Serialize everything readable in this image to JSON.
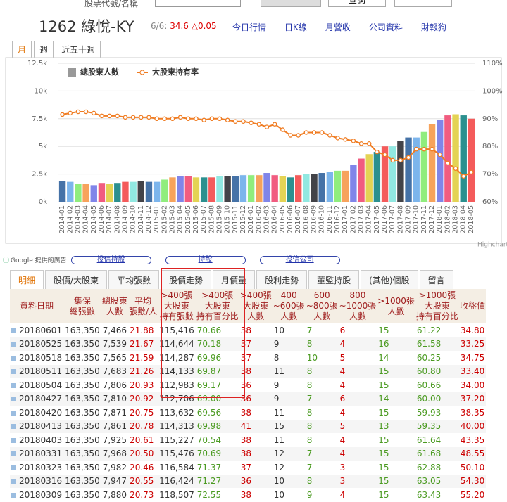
{
  "search": {
    "label": "股票代號/名稱",
    "button": "查詢"
  },
  "header": {
    "title": "1262 綠悅-KY",
    "date": "6/6:",
    "price": "34.6",
    "change": "△0.05",
    "links": [
      "今日行情",
      "日K線",
      "月營收",
      "公司資料",
      "財報狗"
    ]
  },
  "period_tabs": [
    "月",
    "週",
    "近五十週"
  ],
  "chart_data": {
    "type": "bar_line",
    "categories": [
      "2014-01",
      "2014-02",
      "2014-03",
      "2014-04",
      "2014-05",
      "2014-06",
      "2014-07",
      "2014-08",
      "2014-09",
      "2014-10",
      "2014-11",
      "2014-12",
      "2015-01",
      "2015-02",
      "2015-03",
      "2015-04",
      "2015-05",
      "2015-06",
      "2015-07",
      "2015-08",
      "2015-09",
      "2015-10",
      "2015-11",
      "2015-12",
      "2016-01",
      "2016-02",
      "2016-03",
      "2016-04",
      "2016-05",
      "2016-06",
      "2016-07",
      "2016-08",
      "2016-09",
      "2016-10",
      "2016-11",
      "2016-12",
      "2017-01",
      "2017-02",
      "2017-03",
      "2017-04",
      "2017-05",
      "2017-06",
      "2017-07",
      "2017-08",
      "2017-09",
      "2017-10",
      "2017-11",
      "2017-12",
      "2018-01",
      "2018-02",
      "2018-03",
      "2018-04",
      "2018-05"
    ],
    "series": [
      {
        "name": "總股東人數",
        "color": "#999999",
        "colors": [
          "#4572a7",
          "#7cb5ec",
          "#90ed7d",
          "#f7a35c",
          "#8085e9",
          "#f15c80",
          "#e4d354",
          "#2b908f",
          "#f45b5b",
          "#91e8e1",
          "#434348"
        ],
        "values": [
          1900,
          1800,
          1600,
          1600,
          1500,
          1700,
          1600,
          1700,
          1800,
          1800,
          1900,
          1800,
          1800,
          2000,
          2200,
          2300,
          2300,
          2200,
          2200,
          2200,
          2300,
          2300,
          2300,
          2400,
          2400,
          2400,
          2600,
          2400,
          2300,
          2200,
          2400,
          2500,
          2500,
          2600,
          2700,
          2800,
          2800,
          3300,
          3900,
          4300,
          4500,
          5000,
          5000,
          5500,
          5800,
          5800,
          6300,
          7000,
          7400,
          7800,
          7900,
          7800,
          7500
        ]
      },
      {
        "name": "大股東持有率",
        "color": "#f07c22",
        "axis": "y2",
        "values": [
          91.5,
          92,
          92.5,
          92.5,
          92,
          91,
          91,
          91,
          90.5,
          90.5,
          90.5,
          90.5,
          90,
          90,
          90,
          90.5,
          90,
          90,
          89.5,
          90,
          90,
          89.5,
          89,
          89,
          88.5,
          88,
          87,
          88,
          86,
          84,
          84,
          85,
          85,
          85,
          84,
          83,
          82.5,
          82,
          81,
          81,
          78,
          77,
          75,
          75,
          76,
          79,
          79,
          79,
          77,
          74,
          72,
          69.2,
          70.7
        ]
      }
    ],
    "ylim": [
      0,
      12500
    ],
    "yticks": [
      {
        "value": 0,
        "label": "0k"
      },
      {
        "value": 2500,
        "label": "2.5k"
      },
      {
        "value": 5000,
        "label": "5k"
      },
      {
        "value": 7500,
        "label": "7.5k"
      },
      {
        "value": 10000,
        "label": "10k"
      },
      {
        "value": 12500,
        "label": "12.5k"
      }
    ],
    "y2lim": [
      60,
      110
    ],
    "y2ticks": [
      {
        "value": 60,
        "label": "60%"
      },
      {
        "value": 70,
        "label": "70%"
      },
      {
        "value": 80,
        "label": "80%"
      },
      {
        "value": 90,
        "label": "90%"
      },
      {
        "value": 100,
        "label": "100%"
      },
      {
        "value": 110,
        "label": "110%"
      }
    ],
    "grid": true,
    "legend": "top",
    "credit": "Highcharts.com"
  },
  "ad_label": "Google 提供的廣告",
  "ad_links": [
    "投信持股",
    "持股",
    "投信公司"
  ],
  "tabs": [
    "明細",
    "股價/大股東",
    "平均張數",
    "股價走勢",
    "月價量",
    "股利走勢",
    "董監持股",
    "(其他)個股",
    "留言"
  ],
  "table": {
    "headers": [
      [
        "資料日期"
      ],
      [
        "集保",
        "總張數"
      ],
      [
        "總股東",
        "人數"
      ],
      [
        "平均",
        "張數/人"
      ],
      [
        ">400張",
        "大股東",
        "持有張數"
      ],
      [
        ">400張",
        "大股東",
        "持有百分比"
      ],
      [
        ">400張",
        "大股東",
        "人數"
      ],
      [
        "400",
        "~600張",
        "人數"
      ],
      [
        "600",
        "~800張",
        "人數"
      ],
      [
        "800",
        "~1000張",
        "人數"
      ],
      [
        ">1000張",
        "人數"
      ],
      [
        ">1000張",
        "大股東",
        "持有百分比"
      ],
      [
        "收盤價"
      ]
    ],
    "rows": [
      [
        "20180601",
        "163,350",
        "7,466",
        "21.88",
        "115,416",
        "70.66",
        "38",
        "10",
        "7",
        "6",
        "15",
        "61.22",
        "34.80"
      ],
      [
        "20180525",
        "163,350",
        "7,539",
        "21.67",
        "114,644",
        "70.18",
        "37",
        "9",
        "8",
        "4",
        "16",
        "61.58",
        "33.25"
      ],
      [
        "20180518",
        "163,350",
        "7,565",
        "21.59",
        "114,287",
        "69.96",
        "37",
        "8",
        "10",
        "5",
        "14",
        "60.25",
        "34.75"
      ],
      [
        "20180511",
        "163,350",
        "7,683",
        "21.26",
        "114,133",
        "69.87",
        "38",
        "11",
        "8",
        "4",
        "15",
        "60.80",
        "33.40"
      ],
      [
        "20180504",
        "163,350",
        "7,806",
        "20.93",
        "112,983",
        "69.17",
        "36",
        "9",
        "8",
        "4",
        "15",
        "60.66",
        "34.00"
      ],
      [
        "20180427",
        "163,350",
        "7,810",
        "20.92",
        "112,706",
        "69.00",
        "36",
        "9",
        "7",
        "6",
        "14",
        "60.00",
        "37.20"
      ],
      [
        "20180420",
        "163,350",
        "7,871",
        "20.75",
        "113,632",
        "69.56",
        "38",
        "11",
        "8",
        "4",
        "15",
        "59.93",
        "38.35"
      ],
      [
        "20180413",
        "163,350",
        "7,861",
        "20.78",
        "114,313",
        "69.98",
        "41",
        "15",
        "8",
        "5",
        "13",
        "59.35",
        "40.00"
      ],
      [
        "20180403",
        "163,350",
        "7,925",
        "20.61",
        "115,227",
        "70.54",
        "38",
        "11",
        "8",
        "4",
        "15",
        "61.64",
        "43.35"
      ],
      [
        "20180331",
        "163,350",
        "7,968",
        "20.50",
        "115,476",
        "70.69",
        "38",
        "12",
        "7",
        "4",
        "15",
        "61.68",
        "48.55"
      ],
      [
        "20180323",
        "163,350",
        "7,982",
        "20.46",
        "116,584",
        "71.37",
        "37",
        "12",
        "7",
        "3",
        "15",
        "62.88",
        "50.10"
      ],
      [
        "20180316",
        "163,350",
        "7,947",
        "20.55",
        "116,424",
        "71.27",
        "36",
        "10",
        "8",
        "3",
        "15",
        "63.05",
        "54.30"
      ],
      [
        "20180309",
        "163,350",
        "7,880",
        "20.73",
        "118,507",
        "72.55",
        "38",
        "10",
        "9",
        "4",
        "15",
        "63.43",
        "55.20"
      ]
    ]
  }
}
